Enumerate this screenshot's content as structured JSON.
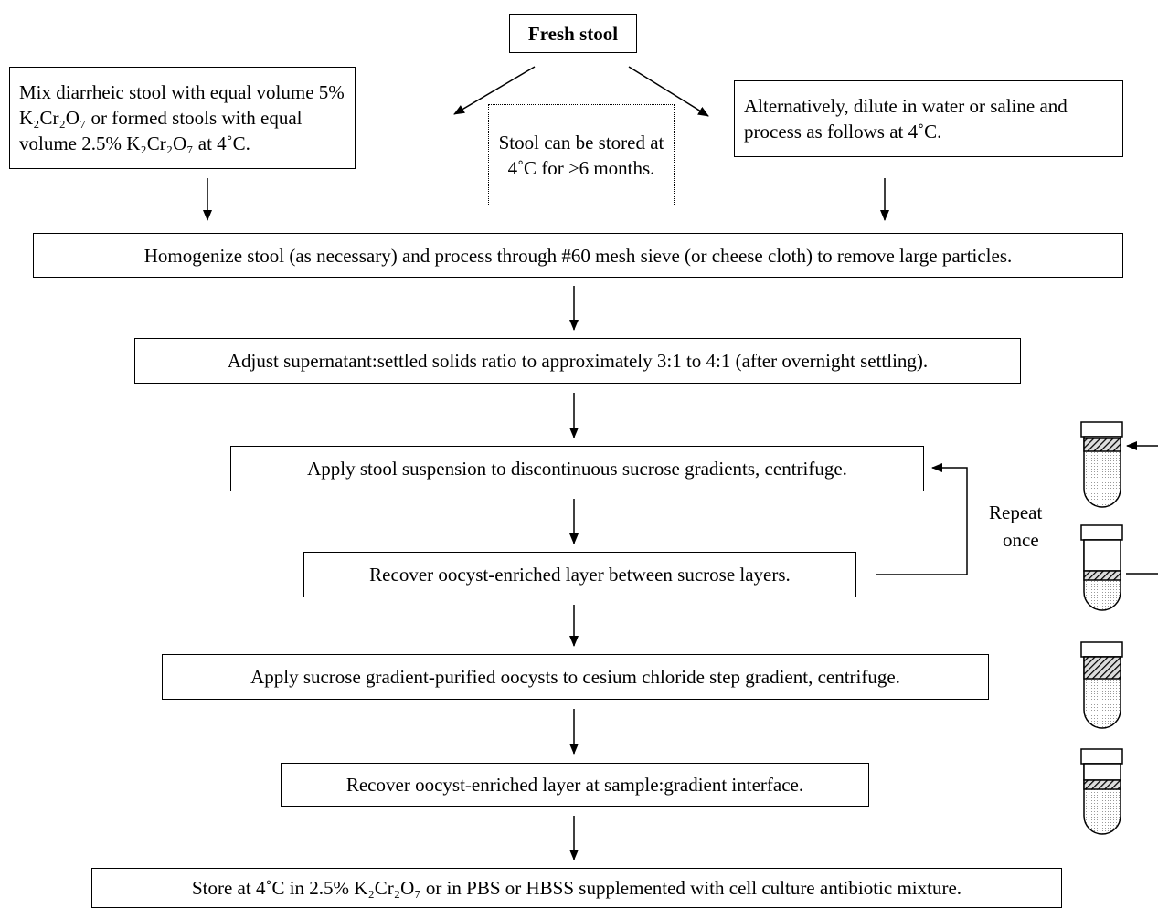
{
  "nodes": [
    {
      "label": "Fresh stool"
    },
    {
      "label": "Mix diarrheic stool with equal volume 5% K₂Cr₂O₇ or formed stools with equal volume 2.5% K₂Cr₂O₇ at 4˚C."
    },
    {
      "label": "Stool can be stored at 4˚C for ≥6 months."
    },
    {
      "label": "Alternatively, dilute in water or saline and process as follows at 4˚C."
    },
    {
      "label": "Homogenize stool (as necessary) and process through #60 mesh sieve (or cheese cloth) to remove large particles."
    },
    {
      "label": "Adjust supernatant:settled solids ratio to approximately 3:1 to 4:1 (after overnight settling)."
    },
    {
      "label": "Apply stool suspension to discontinuous sucrose gradients, centrifuge."
    },
    {
      "label": "Recover oocyst-enriched layer between sucrose layers."
    },
    {
      "label": "Apply sucrose gradient-purified oocysts to cesium chloride step gradient, centrifuge."
    },
    {
      "label": "Recover oocyst-enriched layer at sample:gradient interface."
    },
    {
      "label": "Store at 4˚C in 2.5% K₂Cr₂O₇ or in PBS or HBSS supplemented with cell culture antibiotic mixture."
    }
  ],
  "loop_label": {
    "line1": "Repeat",
    "line2": "once"
  }
}
